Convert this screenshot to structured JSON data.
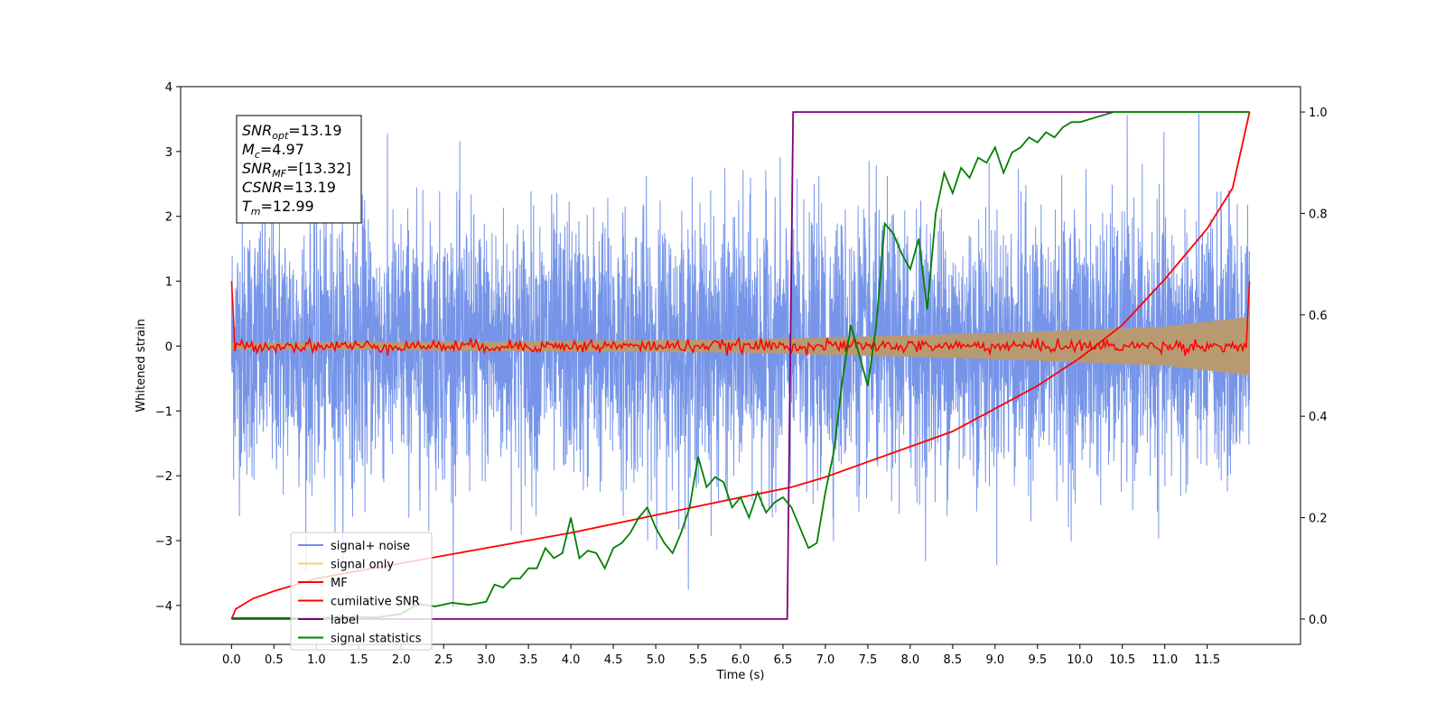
{
  "chart_data": {
    "type": "line",
    "xlabel": "Time (s)",
    "ylabel": "Whitened strain",
    "xlim": [
      -0.6,
      12.6
    ],
    "ylim": [
      -4.6,
      4.0
    ],
    "y2lim": [
      -0.05,
      1.05
    ],
    "x_ticks": [
      0.0,
      0.5,
      1.0,
      1.5,
      2.0,
      2.5,
      3.0,
      3.5,
      4.0,
      4.5,
      5.0,
      5.5,
      6.0,
      6.5,
      7.0,
      7.5,
      8.0,
      8.5,
      9.0,
      9.5,
      10.0,
      10.5,
      11.0,
      11.5
    ],
    "x_tick_labels": [
      "0.0",
      "0.5",
      "1.0",
      "1.5",
      "2.0",
      "2.5",
      "3.0",
      "3.5",
      "4.0",
      "4.5",
      "5.0",
      "5.5",
      "6.0",
      "6.5",
      "7.0",
      "7.5",
      "8.0",
      "8.5",
      "9.0",
      "9.5",
      "10.0",
      "10.5",
      "11.0",
      "11.5"
    ],
    "y_ticks": [
      4,
      3,
      2,
      1,
      0,
      -1,
      -2,
      -3,
      -4
    ],
    "y_tick_labels": [
      "4",
      "3",
      "2",
      "1",
      "0",
      "−1",
      "−2",
      "−3",
      "−4"
    ],
    "y2_ticks": [
      0.0,
      0.2,
      0.4,
      0.6,
      0.8,
      1.0
    ],
    "y2_tick_labels": [
      "0.0",
      "0.2",
      "0.4",
      "0.6",
      "0.8",
      "1.0"
    ],
    "grid": false,
    "legend_position": "lower-left",
    "series": [
      {
        "name": "signal+ noise",
        "axis": "left",
        "color": "#6f8fe8",
        "x_range": [
          0.0,
          12.0
        ],
        "noise_std": 1.0,
        "value_range": [
          -4.2,
          3.6
        ]
      },
      {
        "name": "signal only",
        "axis": "left",
        "color": "#ffa500",
        "envelope": [
          {
            "x": 0.0,
            "amp": 0.05
          },
          {
            "x": 6.0,
            "amp": 0.1
          },
          {
            "x": 9.0,
            "amp": 0.2
          },
          {
            "x": 11.0,
            "amp": 0.3
          },
          {
            "x": 12.0,
            "amp": 0.45
          }
        ]
      },
      {
        "name": "MF",
        "axis": "left",
        "color": "#ff0000",
        "endpoints": {
          "x_start": 0.0,
          "x_end": 12.0,
          "peak": 1.0
        },
        "noise_level": 0.08
      },
      {
        "name": "cumilative SNR",
        "axis": "right",
        "color": "#ff0000",
        "points": [
          [
            0.0,
            0.0
          ],
          [
            0.05,
            0.02
          ],
          [
            0.25,
            0.04
          ],
          [
            0.5,
            0.055
          ],
          [
            1.0,
            0.08
          ],
          [
            2.0,
            0.11
          ],
          [
            3.0,
            0.14
          ],
          [
            4.0,
            0.17
          ],
          [
            5.0,
            0.205
          ],
          [
            6.0,
            0.24
          ],
          [
            6.6,
            0.26
          ],
          [
            7.0,
            0.28
          ],
          [
            7.5,
            0.31
          ],
          [
            8.0,
            0.34
          ],
          [
            8.5,
            0.37
          ],
          [
            9.0,
            0.415
          ],
          [
            9.5,
            0.46
          ],
          [
            10.0,
            0.515
          ],
          [
            10.5,
            0.58
          ],
          [
            11.0,
            0.67
          ],
          [
            11.5,
            0.77
          ],
          [
            11.8,
            0.85
          ],
          [
            12.0,
            1.0
          ]
        ]
      },
      {
        "name": "label",
        "axis": "right",
        "color": "#800080",
        "points": [
          [
            0.0,
            0.0
          ],
          [
            6.55,
            0.0
          ],
          [
            6.62,
            1.0
          ],
          [
            12.0,
            1.0
          ]
        ]
      },
      {
        "name": "signal statistics",
        "axis": "right",
        "color": "#008000",
        "points": [
          [
            0.0,
            0.002
          ],
          [
            1.0,
            0.002
          ],
          [
            1.5,
            0.004
          ],
          [
            1.7,
            0.003
          ],
          [
            2.0,
            0.01
          ],
          [
            2.2,
            0.03
          ],
          [
            2.4,
            0.025
          ],
          [
            2.6,
            0.032
          ],
          [
            2.8,
            0.028
          ],
          [
            3.0,
            0.034
          ],
          [
            3.1,
            0.068
          ],
          [
            3.2,
            0.062
          ],
          [
            3.3,
            0.08
          ],
          [
            3.4,
            0.08
          ],
          [
            3.5,
            0.1
          ],
          [
            3.6,
            0.1
          ],
          [
            3.7,
            0.14
          ],
          [
            3.8,
            0.12
          ],
          [
            3.9,
            0.13
          ],
          [
            4.0,
            0.2
          ],
          [
            4.1,
            0.12
          ],
          [
            4.2,
            0.135
          ],
          [
            4.3,
            0.13
          ],
          [
            4.4,
            0.1
          ],
          [
            4.5,
            0.14
          ],
          [
            4.6,
            0.15
          ],
          [
            4.7,
            0.17
          ],
          [
            4.8,
            0.2
          ],
          [
            4.9,
            0.22
          ],
          [
            5.0,
            0.18
          ],
          [
            5.1,
            0.15
          ],
          [
            5.2,
            0.13
          ],
          [
            5.3,
            0.17
          ],
          [
            5.4,
            0.22
          ],
          [
            5.5,
            0.32
          ],
          [
            5.6,
            0.26
          ],
          [
            5.7,
            0.28
          ],
          [
            5.8,
            0.27
          ],
          [
            5.9,
            0.22
          ],
          [
            6.0,
            0.24
          ],
          [
            6.1,
            0.2
          ],
          [
            6.2,
            0.25
          ],
          [
            6.3,
            0.21
          ],
          [
            6.4,
            0.23
          ],
          [
            6.5,
            0.24
          ],
          [
            6.6,
            0.22
          ],
          [
            6.7,
            0.18
          ],
          [
            6.8,
            0.14
          ],
          [
            6.9,
            0.15
          ],
          [
            7.0,
            0.25
          ],
          [
            7.1,
            0.33
          ],
          [
            7.2,
            0.47
          ],
          [
            7.3,
            0.58
          ],
          [
            7.4,
            0.52
          ],
          [
            7.5,
            0.46
          ],
          [
            7.6,
            0.58
          ],
          [
            7.7,
            0.78
          ],
          [
            7.8,
            0.76
          ],
          [
            7.9,
            0.72
          ],
          [
            8.0,
            0.69
          ],
          [
            8.1,
            0.75
          ],
          [
            8.2,
            0.61
          ],
          [
            8.3,
            0.8
          ],
          [
            8.4,
            0.88
          ],
          [
            8.5,
            0.84
          ],
          [
            8.6,
            0.89
          ],
          [
            8.7,
            0.87
          ],
          [
            8.8,
            0.91
          ],
          [
            8.9,
            0.9
          ],
          [
            9.0,
            0.93
          ],
          [
            9.1,
            0.88
          ],
          [
            9.2,
            0.92
          ],
          [
            9.3,
            0.93
          ],
          [
            9.4,
            0.95
          ],
          [
            9.5,
            0.94
          ],
          [
            9.6,
            0.96
          ],
          [
            9.7,
            0.95
          ],
          [
            9.8,
            0.97
          ],
          [
            9.9,
            0.98
          ],
          [
            10.0,
            0.98
          ],
          [
            10.2,
            0.99
          ],
          [
            10.4,
            1.0
          ],
          [
            11.0,
            1.0
          ],
          [
            12.0,
            1.0
          ]
        ]
      }
    ],
    "annotations": [
      {
        "base": "SNR",
        "sub": "opt",
        "rest": "=13.19"
      },
      {
        "base": "M",
        "sub": "c",
        "rest": "=4.97"
      },
      {
        "base": "SNR",
        "sub": "MF",
        "rest": "=[13.32]"
      },
      {
        "base": "CSNR",
        "sub": "",
        "rest": "=13.19"
      },
      {
        "base": "T",
        "sub": "m",
        "rest": "=12.99"
      }
    ]
  }
}
